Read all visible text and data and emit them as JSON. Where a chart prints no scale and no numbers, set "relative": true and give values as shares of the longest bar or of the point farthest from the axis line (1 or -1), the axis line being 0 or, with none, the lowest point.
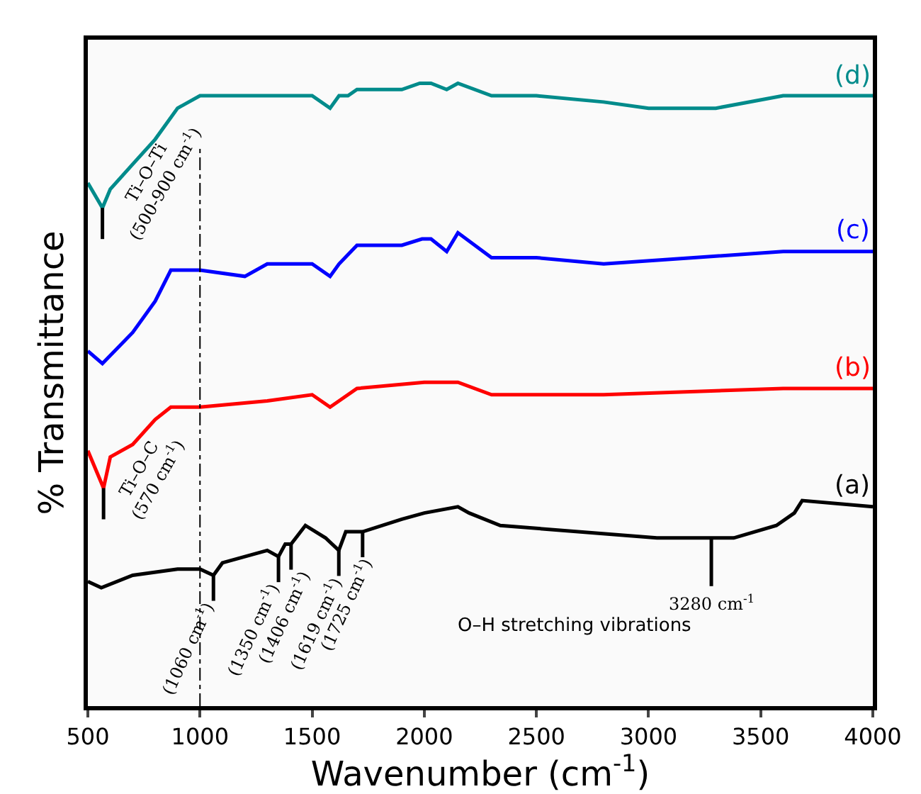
{
  "chart_data": {
    "type": "line",
    "relative": true,
    "xlabel": "Wavenumber (cm$^{-1}$)",
    "ylabel": "% Transmittance",
    "xlim": [
      500,
      4000
    ],
    "xticks": [
      500,
      1000,
      1500,
      2000,
      2500,
      3000,
      3500,
      4000
    ],
    "grid": false,
    "legend": false,
    "marker": "none",
    "line_style": "solid",
    "tick_labels": "x",
    "series": [
      {
        "name": "(a)",
        "color": "#000000",
        "x": [
          500,
          560,
          700,
          900,
          1000,
          1060,
          1100,
          1300,
          1350,
          1380,
          1406,
          1470,
          1560,
          1619,
          1650,
          1725,
          1900,
          2000,
          2150,
          2200,
          2339,
          3037,
          3252,
          3380,
          3570,
          3650,
          3685,
          4000
        ],
        "values": [
          0.2,
          0.19,
          0.21,
          0.22,
          0.22,
          0.21,
          0.23,
          0.25,
          0.24,
          0.26,
          0.26,
          0.29,
          0.27,
          0.25,
          0.28,
          0.28,
          0.3,
          0.31,
          0.32,
          0.31,
          0.29,
          0.27,
          0.27,
          0.27,
          0.29,
          0.31,
          0.33,
          0.32
        ]
      },
      {
        "name": "(b)",
        "color": "#ff0000",
        "x": [
          500,
          570,
          600,
          700,
          800,
          870,
          1000,
          1300,
          1500,
          1580,
          1620,
          1700,
          2000,
          2150,
          2300,
          2800,
          3600,
          4000
        ],
        "values": [
          0.41,
          0.35,
          0.4,
          0.42,
          0.46,
          0.48,
          0.48,
          0.49,
          0.5,
          0.48,
          0.49,
          0.51,
          0.52,
          0.52,
          0.5,
          0.5,
          0.51,
          0.51
        ]
      },
      {
        "name": "(c)",
        "color": "#0000ff",
        "x": [
          500,
          565,
          700,
          800,
          870,
          1000,
          1200,
          1300,
          1500,
          1580,
          1620,
          1700,
          1900,
          1990,
          2030,
          2100,
          2150,
          2300,
          2500,
          2800,
          3200,
          3600,
          4000
        ],
        "values": [
          0.57,
          0.55,
          0.6,
          0.65,
          0.7,
          0.7,
          0.69,
          0.71,
          0.71,
          0.69,
          0.71,
          0.74,
          0.74,
          0.75,
          0.75,
          0.73,
          0.76,
          0.72,
          0.72,
          0.71,
          0.72,
          0.73,
          0.73
        ]
      },
      {
        "name": "(d)",
        "color": "#008b8b",
        "x": [
          500,
          565,
          600,
          700,
          800,
          900,
          1000,
          1200,
          1500,
          1580,
          1620,
          1660,
          1700,
          1900,
          1980,
          2030,
          2100,
          2150,
          2300,
          2500,
          2800,
          3000,
          3300,
          3600,
          4000
        ],
        "values": [
          0.84,
          0.8,
          0.83,
          0.87,
          0.91,
          0.96,
          0.98,
          0.98,
          0.98,
          0.96,
          0.98,
          0.98,
          0.99,
          0.99,
          1.0,
          1.0,
          0.99,
          1.0,
          0.98,
          0.98,
          0.97,
          0.96,
          0.96,
          0.98,
          0.98
        ]
      }
    ],
    "ref_lines": [
      {
        "axis": "x",
        "value": 1000,
        "line_style": "dashed",
        "color": "#000000"
      }
    ],
    "annotations": [
      {
        "text": "Ti–O–Ti (500-900 cm$^{-1}$)",
        "x": 565,
        "y": 0.8
      },
      {
        "text": "Ti–O–C (570 cm$^{-1}$)",
        "x": 570,
        "y": 0.35
      },
      {
        "text": "(1060 cm$^{-1}$)",
        "x": 1060,
        "y": 0.21
      },
      {
        "text": "(1350 cm$^{-1}$)",
        "x": 1350,
        "y": 0.24
      },
      {
        "text": "(1406 cm$^{-1}$)",
        "x": 1406,
        "y": 0.26
      },
      {
        "text": "(1619 cm$^{-1}$)",
        "x": 1619,
        "y": 0.25
      },
      {
        "text": "(1725 cm$^{-1}$)",
        "x": 1725,
        "y": 0.28
      },
      {
        "text": "3280 cm$^{-1}$",
        "x": 3280,
        "y": 0.27
      },
      "O–H stretching vibrations"
    ]
  }
}
